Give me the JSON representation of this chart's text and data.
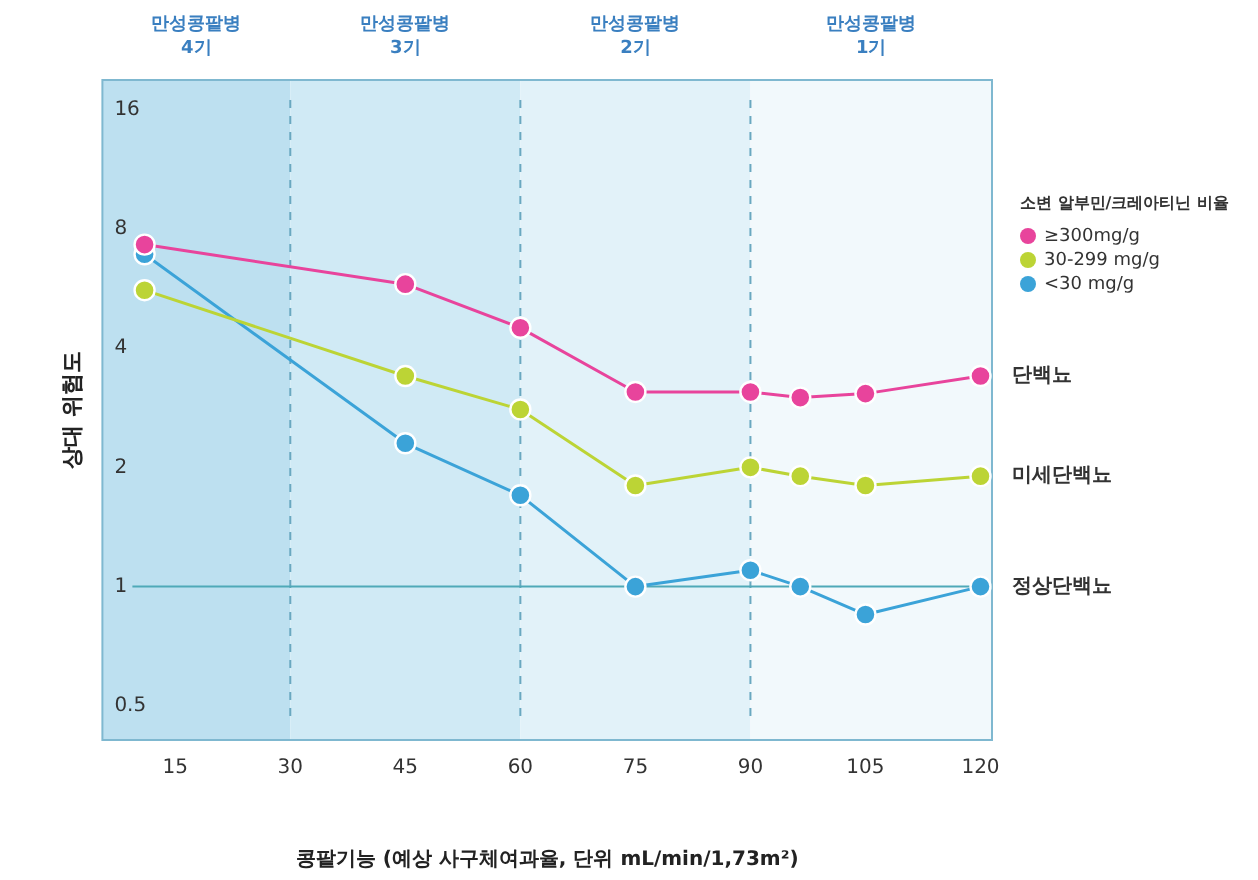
{
  "chart_data": {
    "type": "line",
    "xlabel": "콩팥기능 (예상 사구체여과율, 단위 mL/min/1,73m²)",
    "ylabel": "상대 위험도",
    "legend_title": "소변 알부민/크레아티닌 비율",
    "legend": "top right",
    "log": "y",
    "marker": "circle",
    "grid": false,
    "xlim": [
      5.5,
      121.5
    ],
    "xticks": [
      15,
      30,
      45,
      60,
      75,
      90,
      105,
      120
    ],
    "ylim": [
      0.41,
      19
    ],
    "yticks": [
      0.5,
      1,
      2,
      4,
      8,
      16
    ],
    "series": [
      {
        "name": "≥300mg/g",
        "color": "#e8449c",
        "x": [
          11,
          45,
          60,
          75,
          90,
          96.5,
          105,
          120
        ],
        "values": [
          7.3,
          5.8,
          4.5,
          3.1,
          3.1,
          3.0,
          3.07,
          3.4
        ]
      },
      {
        "name": "30-299 mg/g",
        "color": "#bcd435",
        "x": [
          11,
          45,
          60,
          75,
          90,
          96.5,
          105,
          120
        ],
        "values": [
          5.6,
          3.4,
          2.8,
          1.8,
          2.0,
          1.9,
          1.8,
          1.9
        ]
      },
      {
        "name": "<30 mg/g",
        "color": "#3ba3d8",
        "x": [
          11,
          45,
          60,
          75,
          90,
          96.5,
          105,
          120
        ],
        "values": [
          6.9,
          2.3,
          1.7,
          1.0,
          1.1,
          1.0,
          0.85,
          1.0
        ]
      }
    ],
    "ref_lines": [
      {
        "axis": "x",
        "value": 30,
        "line_style": "dashed",
        "color": "#6aa8c0"
      },
      {
        "axis": "x",
        "value": 60,
        "line_style": "dashed",
        "color": "#6aa8c0"
      },
      {
        "axis": "x",
        "value": 90,
        "line_style": "dashed",
        "color": "#6aa8c0"
      },
      {
        "axis": "y",
        "value": 1,
        "line_style": "solid",
        "color": "#4fa9b8"
      }
    ],
    "bands": [
      {
        "axis": "x",
        "from": 5.5,
        "to": 30,
        "label": "만성콩팥병\n4기",
        "color": "#bde0f0"
      },
      {
        "axis": "x",
        "from": 30,
        "to": 60,
        "label": "만성콩팥병\n3기",
        "color": "#d0eaf5"
      },
      {
        "axis": "x",
        "from": 60,
        "to": 90,
        "label": "만성콩팥병\n2기",
        "color": "#e2f2f9"
      },
      {
        "axis": "x",
        "from": 90,
        "to": 121.5,
        "label": "만성콩팥병\n1기",
        "color": "#f2f9fc"
      }
    ],
    "annotations": [
      "단백뇨",
      "미세단백뇨",
      "정상단백뇨"
    ]
  }
}
